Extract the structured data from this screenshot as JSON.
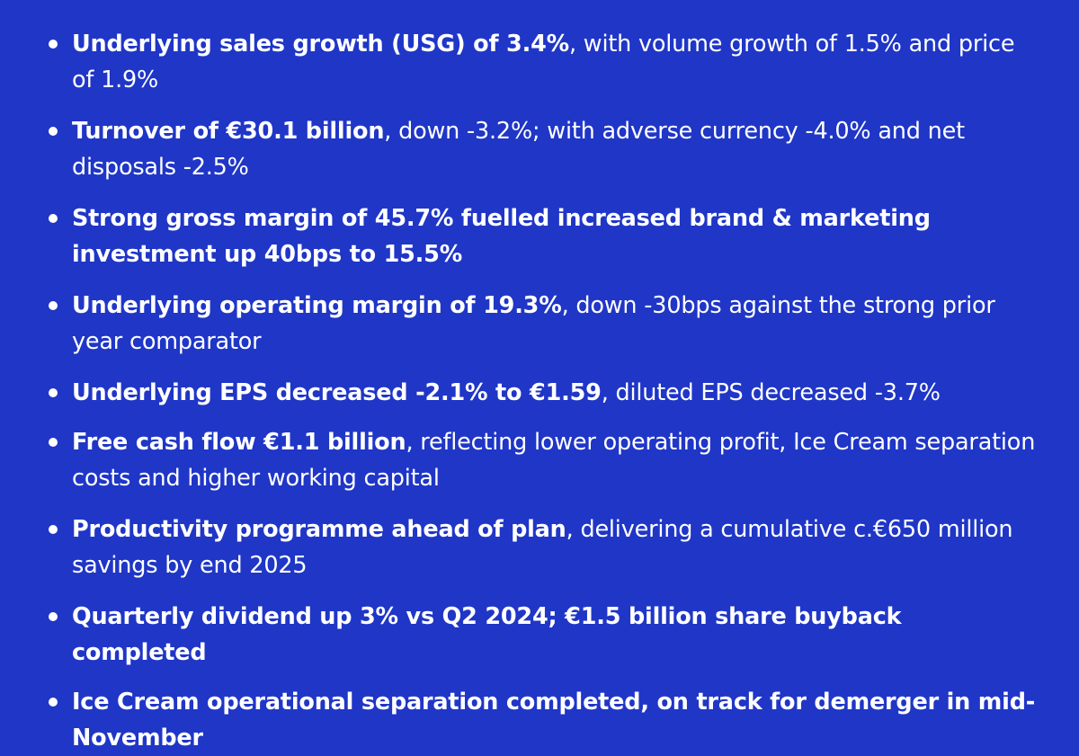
{
  "background_color": "#1f36c7",
  "text_color": "#ffffff",
  "highlights": [
    {
      "bold": "Underlying sales growth (USG) of 3.4%",
      "rest": ", with volume growth of 1.5% and price of 1.9%"
    },
    {
      "bold": "Turnover of €30.1 billion",
      "rest": ", down -3.2%; with adverse currency -4.0% and net disposals -2.5%"
    },
    {
      "bold": "Strong gross margin of 45.7% fuelled increased brand & marketing investment up 40bps to 15.5%",
      "rest": ""
    },
    {
      "bold": "Underlying operating margin of 19.3%",
      "rest": ", down -30bps against the strong prior year comparator"
    },
    {
      "bold": "Underlying EPS decreased -2.1% to €1.59",
      "rest": ", diluted EPS decreased -3.7%"
    },
    {
      "bold": "Free cash flow €1.1 billion",
      "rest": ", reflecting lower operating profit, Ice Cream separation costs and higher working capital"
    },
    {
      "bold": "Productivity programme ahead of plan",
      "rest": ", delivering a cumulative c.€650 million savings by end 2025"
    },
    {
      "bold": "Quarterly dividend up 3% vs Q2 2024; €1.5 billion share buyback completed",
      "rest": ""
    },
    {
      "bold": "Ice Cream operational separation completed, on track for demerger in mid-November",
      "rest": ""
    }
  ]
}
